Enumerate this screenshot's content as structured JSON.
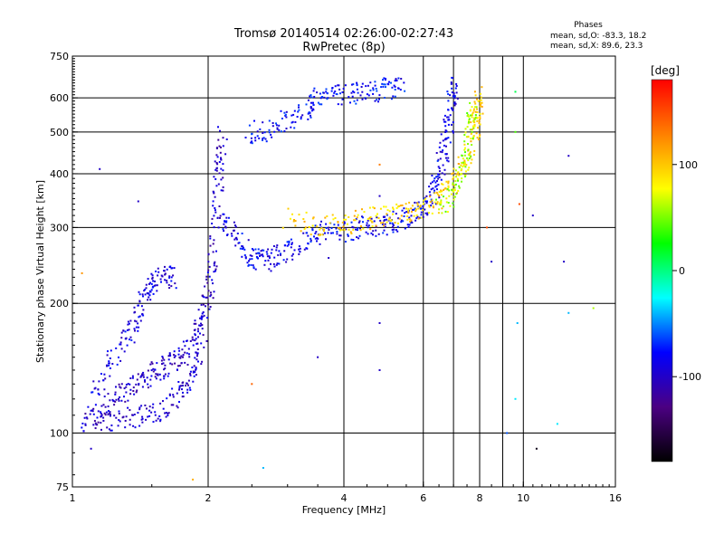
{
  "chart_data": {
    "type": "scatter",
    "title_line1": "Tromsø 20140514 02:26:00-02:27:43",
    "title_line2": "RwPretec (8p)",
    "stats": {
      "heading": "Phases",
      "o_mode": "mean, sd,O: -83.3, 18.2",
      "x_mode": "mean, sd,X: 89.6, 23.3"
    },
    "xlabel": "Frequency [MHz]",
    "ylabel": "Stationary phase Virtual Height [km]",
    "x_scale": "log",
    "y_scale": "log",
    "xlim": [
      1,
      16
    ],
    "ylim": [
      75,
      750
    ],
    "x_ticks": [
      1,
      2,
      4,
      6,
      8,
      10,
      16
    ],
    "x_tick_labels": [
      "1",
      "2",
      "4",
      "6",
      "8",
      "10",
      "16"
    ],
    "x_grid": [
      2,
      4,
      6,
      7,
      8,
      9,
      10
    ],
    "y_ticks": [
      75,
      100,
      200,
      300,
      400,
      500,
      600,
      750
    ],
    "y_tick_labels": [
      "75",
      "100",
      "200",
      "300",
      "400",
      "500",
      "600",
      "750"
    ],
    "y_grid": [
      100,
      200,
      300,
      400,
      500,
      600
    ],
    "grid": true,
    "colorbar": {
      "label": "[deg]",
      "range": [
        -180,
        180
      ],
      "ticks": [
        100,
        0,
        -100
      ],
      "tick_labels": [
        "100",
        "0",
        "-100"
      ],
      "colormap": [
        "#000000",
        "#4b0082",
        "#0000ff",
        "#00ffff",
        "#00ff00",
        "#ffff00",
        "#ff8000",
        "#ff0000"
      ]
    },
    "trace_segments": [
      {
        "trace": "o-low-E",
        "phase": -100,
        "points": [
          [
            1.05,
            105
          ],
          [
            1.15,
            110
          ],
          [
            1.25,
            120
          ],
          [
            1.35,
            130
          ],
          [
            1.45,
            135
          ],
          [
            1.55,
            140
          ],
          [
            1.65,
            145
          ],
          [
            1.75,
            150
          ],
          [
            1.85,
            165
          ],
          [
            1.95,
            185
          ],
          [
            2.0,
            210
          ],
          [
            2.05,
            260
          ],
          [
            2.1,
            340
          ],
          [
            2.12,
            420
          ],
          [
            2.15,
            500
          ]
        ]
      },
      {
        "trace": "o-lower-band",
        "phase": -95,
        "points": [
          [
            1.15,
            105
          ],
          [
            1.3,
            108
          ],
          [
            1.45,
            110
          ],
          [
            1.6,
            115
          ],
          [
            1.75,
            125
          ],
          [
            1.85,
            140
          ],
          [
            1.95,
            160
          ]
        ]
      },
      {
        "trace": "o-low-spread",
        "phase": -90,
        "points": [
          [
            1.1,
            115
          ],
          [
            1.2,
            140
          ],
          [
            1.3,
            165
          ],
          [
            1.38,
            180
          ],
          [
            1.45,
            210
          ],
          [
            1.5,
            225
          ],
          [
            1.6,
            230
          ],
          [
            1.7,
            230
          ]
        ]
      },
      {
        "trace": "o-F1",
        "phase": -85,
        "points": [
          [
            2.15,
            320
          ],
          [
            2.3,
            285
          ],
          [
            2.45,
            260
          ],
          [
            2.6,
            250
          ],
          [
            2.8,
            255
          ],
          [
            3.0,
            265
          ],
          [
            3.3,
            280
          ],
          [
            3.6,
            295
          ],
          [
            4.0,
            295
          ],
          [
            4.4,
            300
          ],
          [
            4.8,
            305
          ],
          [
            5.2,
            310
          ],
          [
            5.6,
            320
          ],
          [
            6.0,
            335
          ],
          [
            6.3,
            360
          ],
          [
            6.5,
            400
          ],
          [
            6.7,
            460
          ],
          [
            6.85,
            530
          ],
          [
            6.95,
            600
          ],
          [
            7.0,
            640
          ]
        ]
      },
      {
        "trace": "o-F2-upper",
        "phase": -80,
        "points": [
          [
            2.45,
            500
          ],
          [
            2.7,
            505
          ],
          [
            3.0,
            530
          ],
          [
            3.3,
            570
          ],
          [
            3.5,
            600
          ],
          [
            3.8,
            610
          ],
          [
            4.2,
            615
          ],
          [
            4.6,
            620
          ],
          [
            5.0,
            630
          ],
          [
            5.4,
            640
          ]
        ]
      },
      {
        "trace": "x-F1",
        "phase": 95,
        "points": [
          [
            3.0,
            315
          ],
          [
            3.5,
            300
          ],
          [
            4.0,
            305
          ],
          [
            4.5,
            315
          ],
          [
            5.0,
            320
          ],
          [
            5.5,
            325
          ],
          [
            6.0,
            335
          ],
          [
            6.5,
            350
          ],
          [
            7.0,
            380
          ],
          [
            7.5,
            430
          ],
          [
            7.8,
            500
          ],
          [
            7.95,
            560
          ],
          [
            8.0,
            620
          ]
        ]
      },
      {
        "trace": "x-inner",
        "phase": 60,
        "points": [
          [
            6.5,
            330
          ],
          [
            7.0,
            360
          ],
          [
            7.3,
            400
          ],
          [
            7.5,
            450
          ],
          [
            7.65,
            520
          ],
          [
            7.75,
            580
          ]
        ]
      }
    ],
    "isolated_points": [
      {
        "f": 1.1,
        "h": 92,
        "phase": -100
      },
      {
        "f": 1.05,
        "h": 235,
        "phase": 120
      },
      {
        "f": 1.15,
        "h": 410,
        "phase": -100
      },
      {
        "f": 1.4,
        "h": 345,
        "phase": -100
      },
      {
        "f": 1.85,
        "h": 78,
        "phase": 110
      },
      {
        "f": 2.65,
        "h": 83,
        "phase": -40
      },
      {
        "f": 2.5,
        "h": 130,
        "phase": 140
      },
      {
        "f": 3.5,
        "h": 150,
        "phase": -100
      },
      {
        "f": 3.7,
        "h": 255,
        "phase": -100
      },
      {
        "f": 4.8,
        "h": 355,
        "phase": -100
      },
      {
        "f": 4.8,
        "h": 140,
        "phase": -100
      },
      {
        "f": 4.8,
        "h": 180,
        "phase": -100
      },
      {
        "f": 4.8,
        "h": 420,
        "phase": 130
      },
      {
        "f": 8.3,
        "h": 300,
        "phase": 150
      },
      {
        "f": 8.5,
        "h": 250,
        "phase": -100
      },
      {
        "f": 9.2,
        "h": 100,
        "phase": -60
      },
      {
        "f": 9.6,
        "h": 620,
        "phase": 10
      },
      {
        "f": 9.6,
        "h": 500,
        "phase": 40
      },
      {
        "f": 9.7,
        "h": 180,
        "phase": -40
      },
      {
        "f": 9.6,
        "h": 120,
        "phase": -30
      },
      {
        "f": 9.8,
        "h": 340,
        "phase": 150
      },
      {
        "f": 10.5,
        "h": 320,
        "phase": -100
      },
      {
        "f": 10.7,
        "h": 92,
        "phase": -170
      },
      {
        "f": 11.9,
        "h": 105,
        "phase": -30
      },
      {
        "f": 12.6,
        "h": 440,
        "phase": -100
      },
      {
        "f": 12.3,
        "h": 250,
        "phase": -100
      },
      {
        "f": 12.6,
        "h": 190,
        "phase": -40
      },
      {
        "f": 14.3,
        "h": 195,
        "phase": 60
      }
    ]
  }
}
